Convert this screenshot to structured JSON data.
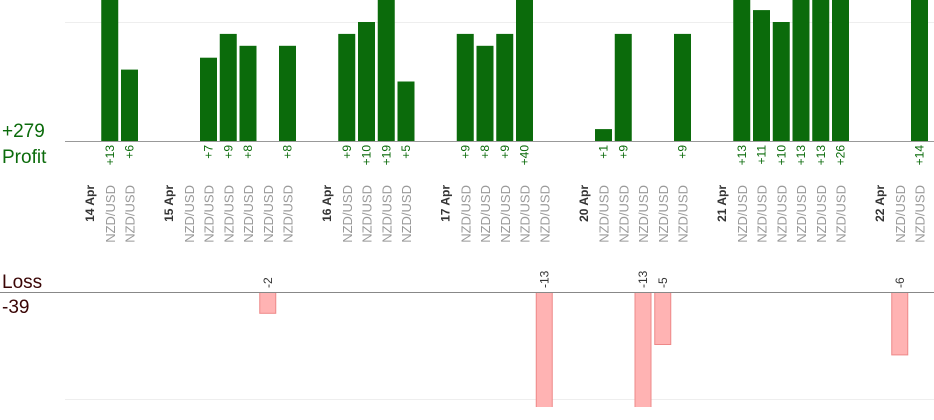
{
  "chart_data": {
    "type": "bar",
    "profit_label": "Profit",
    "profit_total": 279,
    "profit_total_label": "+279",
    "loss_label": "Loss",
    "loss_total": -39,
    "days": [
      {
        "date": "14 Apr",
        "pairs": [
          "NZD/USD",
          "NZD/USD"
        ],
        "values": [
          13,
          6
        ],
        "value_labels": [
          "+13",
          "+6"
        ]
      },
      {
        "date": "15 Apr",
        "pairs": [
          "NZD/USD",
          "NZD/USD",
          "NZD/USD",
          "NZD/USD",
          "NZD/USD",
          "NZD/USD"
        ],
        "values": [
          null,
          7,
          9,
          8,
          -2,
          8
        ],
        "value_labels": [
          null,
          "+7",
          "+9",
          "+8",
          "-2",
          "+8"
        ]
      },
      {
        "date": "16 Apr",
        "pairs": [
          "NZD/USD",
          "NZD/USD",
          "NZD/USD",
          "NZD/USD"
        ],
        "values": [
          9,
          10,
          19,
          5
        ],
        "value_labels": [
          "+9",
          "+10",
          "+19",
          "+5"
        ]
      },
      {
        "date": "17 Apr",
        "pairs": [
          "NZD/USD",
          "NZD/USD",
          "NZD/USD",
          "NZD/USD",
          "NZD/USD"
        ],
        "values": [
          9,
          8,
          9,
          40,
          -13
        ],
        "value_labels": [
          "+9",
          "+8",
          "+9",
          "+40",
          "-13"
        ]
      },
      {
        "date": "20 Apr",
        "pairs": [
          "NZD/USD",
          "NZD/USD",
          "NZD/USD",
          "NZD/USD",
          "NZD/USD"
        ],
        "values": [
          1,
          9,
          -13,
          -5,
          9
        ],
        "value_labels": [
          "+1",
          "+9",
          "-13",
          "-5",
          "+9"
        ]
      },
      {
        "date": "21 Apr",
        "pairs": [
          "NZD/USD",
          "NZD/USD",
          "NZD/USD",
          "NZD/USD",
          "NZD/USD",
          "NZD/USD"
        ],
        "values": [
          13,
          11,
          10,
          13,
          13,
          26
        ],
        "value_labels": [
          "+13",
          "+11",
          "+10",
          "+13",
          "+13",
          "+26"
        ]
      },
      {
        "date": "22 Apr",
        "pairs": [
          "NZD/USD",
          "NZD/USD"
        ],
        "values": [
          -6,
          14
        ],
        "value_labels": [
          "-6",
          "+14"
        ]
      }
    ],
    "profit_color": "#0b6b0b",
    "loss_color": "#ffb3b3"
  }
}
